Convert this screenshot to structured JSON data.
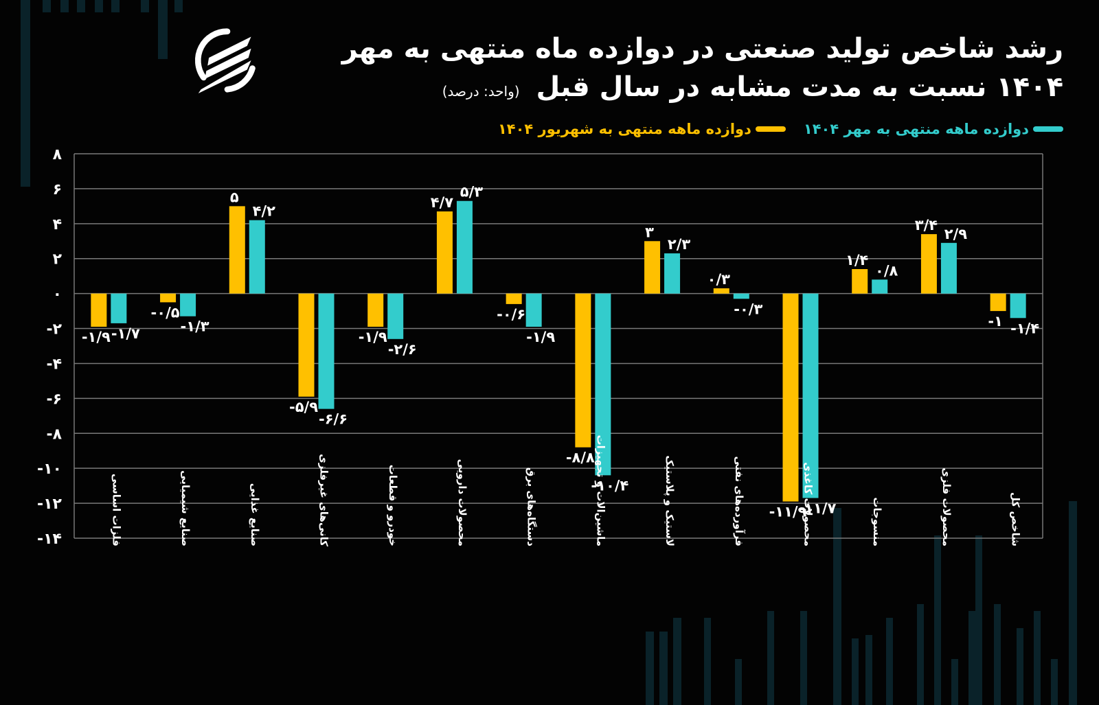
{
  "header": {
    "title_line1": "رشد شاخص تولید صنعتی در دوازده ماه منتهی به مهر",
    "title_line2": "۱۴۰۴ نسبت به مدت مشابه در سال قبل",
    "unit": "(واحد: درصد)",
    "logo": "brand-logo-icon"
  },
  "legend": [
    {
      "label": "دوازده ماهه منتهی به مهر ۱۴۰۴",
      "color": "#33CCCC"
    },
    {
      "label": "دوازده ماهه منتهی به شهریور ۱۴۰۴",
      "color": "#FFC000"
    }
  ],
  "chart_data": {
    "type": "bar",
    "title": "رشد شاخص تولید صنعتی در دوازده ماه منتهی به مهر ۱۴۰۴ نسبت به مدت مشابه در سال قبل",
    "subtitle": "(واحد: درصد)",
    "xlabel": "",
    "ylabel": "",
    "ylim": [
      -14,
      8
    ],
    "yticks": [
      8,
      6,
      4,
      2,
      0,
      -2,
      -4,
      -6,
      -8,
      -10,
      -12,
      -14
    ],
    "ytick_labels": [
      "۸",
      "۶",
      "۴",
      "۲",
      "۰",
      "-۲",
      "-۴",
      "-۶",
      "-۸",
      "-۱۰",
      "-۱۲",
      "-۱۴"
    ],
    "grid": true,
    "legend_position": "top-right",
    "categories": [
      "فلزات اساسی",
      "صنایع شیمیایی",
      "صنایع غذایی",
      "کانی‌های غیرفلزی",
      "خودرو و قطعات",
      "محصولات دارویی",
      "دستگاه‌های برق",
      "ماشین‌الات و تجهیزات",
      "لاستیک و پلاستیک",
      "فرآورده‌های نفتی",
      "محصولات کاغذی",
      "منسوجات",
      "محصولات فلزی",
      "شاخص کل"
    ],
    "series": [
      {
        "name": "دوازده ماهه منتهی به شهریور ۱۴۰۴",
        "color": "#FFC000",
        "values": [
          -1.9,
          -0.5,
          5,
          -5.9,
          -1.9,
          4.7,
          -0.6,
          -8.8,
          3,
          0.3,
          -11.9,
          1.4,
          3.4,
          -1
        ],
        "labels": [
          "-۱/۹",
          "-۰/۵",
          "۵",
          "-۵/۹",
          "-۱/۹",
          "۴/۷",
          "-۰/۶",
          "-۸/۸",
          "۳",
          "۰/۳",
          "-۱۱/۹",
          "۱/۴",
          "۳/۴",
          "-۱"
        ]
      },
      {
        "name": "دوازده ماهه منتهی به مهر ۱۴۰۴",
        "color": "#33CCCC",
        "values": [
          -1.7,
          -1.3,
          4.2,
          -6.6,
          -2.6,
          5.3,
          -1.9,
          -10.4,
          2.3,
          -0.3,
          -11.7,
          0.8,
          2.9,
          -1.4
        ],
        "labels": [
          "-۱/۷",
          "-۱/۳",
          "۴/۲",
          "-۶/۶",
          "-۲/۶",
          "۵/۳",
          "-۱/۹",
          "-۱۰/۴",
          "۲/۳",
          "-۰/۳",
          "-۱۱/۷",
          "۰/۸",
          "۲/۹",
          "-۱/۴"
        ]
      }
    ]
  }
}
